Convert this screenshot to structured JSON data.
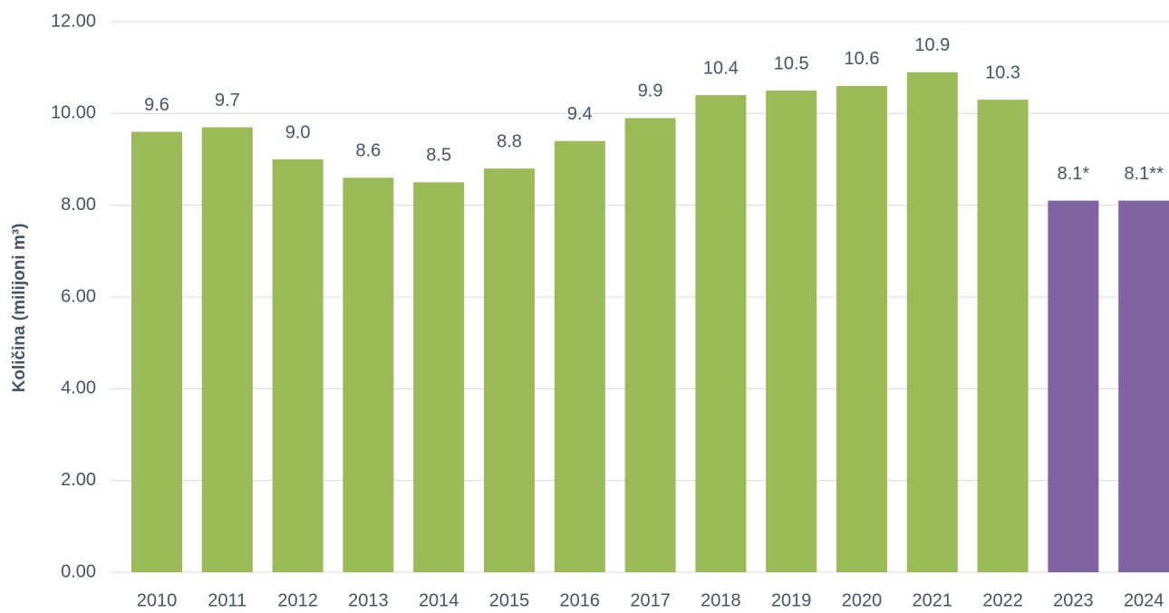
{
  "chart_data": {
    "type": "bar",
    "y_label": "Količina (milijoni m³)",
    "categories": [
      "2010",
      "2011",
      "2012",
      "2013",
      "2014",
      "2015",
      "2016",
      "2017",
      "2018",
      "2019",
      "2020",
      "2021",
      "2022",
      "2023",
      "2024"
    ],
    "values": [
      9.6,
      9.7,
      9.0,
      8.6,
      8.5,
      8.8,
      9.4,
      9.9,
      10.4,
      10.5,
      10.6,
      10.9,
      10.3,
      8.1,
      8.1
    ],
    "value_labels": [
      "9.6",
      "9.7",
      "9.0",
      "8.6",
      "8.5",
      "8.8",
      "9.4",
      "9.9",
      "10.4",
      "10.5",
      "10.6",
      "10.9",
      "10.3",
      "8.1*",
      "8.1**"
    ],
    "colors": [
      "#9bbb59",
      "#9bbb59",
      "#9bbb59",
      "#9bbb59",
      "#9bbb59",
      "#9bbb59",
      "#9bbb59",
      "#9bbb59",
      "#9bbb59",
      "#9bbb59",
      "#9bbb59",
      "#9bbb59",
      "#9bbb59",
      "#8064a2",
      "#8064a2"
    ],
    "ylim": [
      0,
      12
    ],
    "yticks": [
      {
        "value": 0,
        "label": "0.00"
      },
      {
        "value": 2,
        "label": "2.00"
      },
      {
        "value": 4,
        "label": "4.00"
      },
      {
        "value": 6,
        "label": "6.00"
      },
      {
        "value": 8,
        "label": "8.00"
      },
      {
        "value": 10,
        "label": "10.00"
      },
      {
        "value": 12,
        "label": "12.00"
      }
    ],
    "grid": true
  }
}
